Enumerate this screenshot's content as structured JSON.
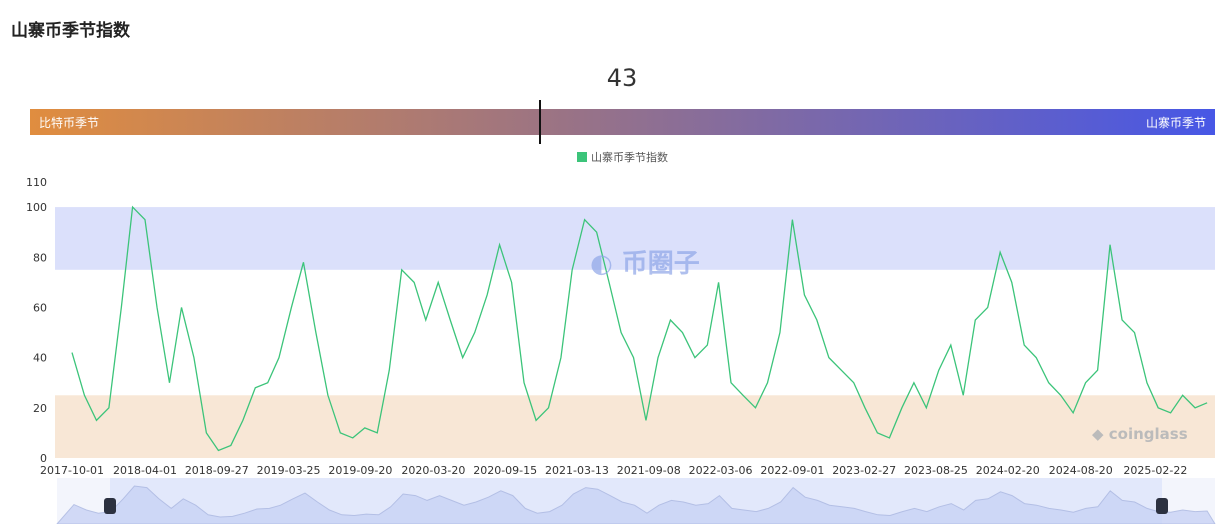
{
  "header": {
    "title": "山寨币季节指数"
  },
  "indicator": {
    "value": "43",
    "current": 43,
    "left_label": "比特币季节",
    "right_label": "山寨币季节"
  },
  "watermarks": {
    "coinglass": "coinglass",
    "site": "币圈子"
  },
  "chart_data": {
    "type": "line",
    "legend": [
      "山寨币季节指数"
    ],
    "legend_placement": "top",
    "colors": {
      "line": "#3cc47a",
      "altcoin_band": "#dbe0fb",
      "bitcoin_band": "#f8e7d6"
    },
    "bands": [
      {
        "from": 75,
        "to": 100,
        "type": "altcoin"
      },
      {
        "from": 0,
        "to": 25,
        "type": "bitcoin"
      }
    ],
    "ylim": [
      0,
      110
    ],
    "yticks": [
      0,
      20,
      40,
      60,
      80,
      100,
      110
    ],
    "xticks": [
      "2017-10-01",
      "2018-04-01",
      "2018-09-27",
      "2019-03-25",
      "2019-09-20",
      "2020-03-20",
      "2020-09-15",
      "2021-03-13",
      "2021-09-08",
      "2022-03-06",
      "2022-09-01",
      "2023-02-27",
      "2023-08-25",
      "2024-02-20",
      "2024-08-20",
      "2025-02-22"
    ],
    "x_start": "2017-10-01",
    "x_step": "monthly",
    "values": [
      42,
      25,
      15,
      20,
      60,
      100,
      95,
      60,
      30,
      60,
      40,
      10,
      3,
      5,
      15,
      28,
      30,
      40,
      60,
      78,
      50,
      25,
      10,
      8,
      12,
      10,
      35,
      75,
      70,
      55,
      70,
      55,
      40,
      50,
      65,
      85,
      70,
      30,
      15,
      20,
      40,
      75,
      95,
      90,
      70,
      50,
      40,
      15,
      40,
      55,
      50,
      40,
      45,
      70,
      30,
      25,
      20,
      30,
      50,
      95,
      65,
      55,
      40,
      35,
      30,
      20,
      10,
      8,
      20,
      30,
      20,
      35,
      45,
      25,
      55,
      60,
      82,
      70,
      45,
      40,
      30,
      25,
      18,
      30,
      35,
      85,
      55,
      50,
      30,
      20,
      18,
      25,
      20,
      22
    ]
  }
}
